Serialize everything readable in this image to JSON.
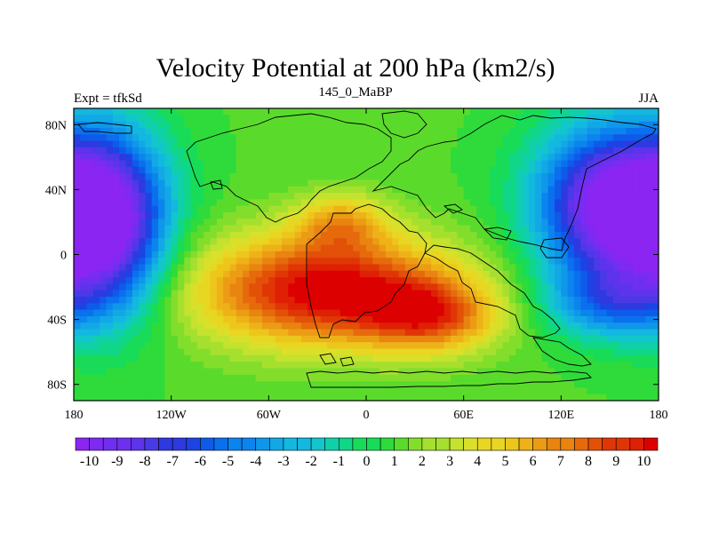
{
  "header": {
    "title": "Velocity Potential at 200 hPa (km2/s)",
    "left": "Expt = tfkSd",
    "center": "145_0_MaBP",
    "right": "JJA"
  },
  "chart_data": {
    "type": "heatmap",
    "title": "Velocity Potential at 200 hPa (km2/s)",
    "xlabel": "",
    "ylabel": "",
    "xlim": [
      -180,
      180
    ],
    "ylim": [
      -90,
      90
    ],
    "x_ticks": [
      {
        "value": -180,
        "label": "180"
      },
      {
        "value": -120,
        "label": "120W"
      },
      {
        "value": -60,
        "label": "60W"
      },
      {
        "value": 0,
        "label": "0"
      },
      {
        "value": 60,
        "label": "60E"
      },
      {
        "value": 120,
        "label": "120E"
      },
      {
        "value": 180,
        "label": "180"
      }
    ],
    "y_ticks": [
      {
        "value": 80,
        "label": "80N"
      },
      {
        "value": 40,
        "label": "40N"
      },
      {
        "value": 0,
        "label": "0"
      },
      {
        "value": -40,
        "label": "40S"
      },
      {
        "value": -80,
        "label": "80S"
      }
    ],
    "colorbar": {
      "labels": [
        "-10",
        "-9",
        "-8",
        "-7",
        "-6",
        "-5",
        "-4",
        "-3",
        "-2",
        "-1",
        "0",
        "1",
        "2",
        "3",
        "4",
        "5",
        "6",
        "7",
        "8",
        "9",
        "10"
      ],
      "min": -10,
      "max": 10,
      "step": 0.5
    },
    "colors": [
      "#8a25f2",
      "#7d2af2",
      "#6f2ff0",
      "#5d33ec",
      "#4a3ae6",
      "#2e39e0",
      "#1c44e4",
      "#0e5bea",
      "#0a70ee",
      "#0c84ee",
      "#0f97ea",
      "#12a8e6",
      "#13b8e0",
      "#12c6cc",
      "#10d0aa",
      "#10d688",
      "#18dc58",
      "#2edb3a",
      "#5adb2c",
      "#83de2c",
      "#a6e02e",
      "#c4e22e",
      "#dae02a",
      "#e8d622",
      "#edc61c",
      "#eeb218",
      "#ec9c14",
      "#e98410",
      "#e66a0c",
      "#e35008",
      "#e03606",
      "#df2004",
      "#dd0000"
    ],
    "field_centers": [
      {
        "lon": -25,
        "lat": -22,
        "value": 10.5,
        "radius_lon": 80,
        "radius_lat": 34
      },
      {
        "lon": 40,
        "lat": -38,
        "value": 6.5,
        "radius_lon": 40,
        "radius_lat": 22
      },
      {
        "lon": -15,
        "lat": 20,
        "value": 5.0,
        "radius_lon": 28,
        "radius_lat": 18
      },
      {
        "lon": -160,
        "lat": 20,
        "value": -10.5,
        "radius_lon": 38,
        "radius_lat": 55
      },
      {
        "lon": 150,
        "lat": 30,
        "value": -10.5,
        "radius_lon": 45,
        "radius_lat": 48
      },
      {
        "lon": 150,
        "lat": -30,
        "value": -3.5,
        "radius_lon": 40,
        "radius_lat": 22
      },
      {
        "lon": -110,
        "lat": 15,
        "value": 1.5,
        "radius_lon": 10,
        "radius_lat": 8
      }
    ],
    "field_background": 1.0,
    "grid": false,
    "legend": "bottom"
  }
}
